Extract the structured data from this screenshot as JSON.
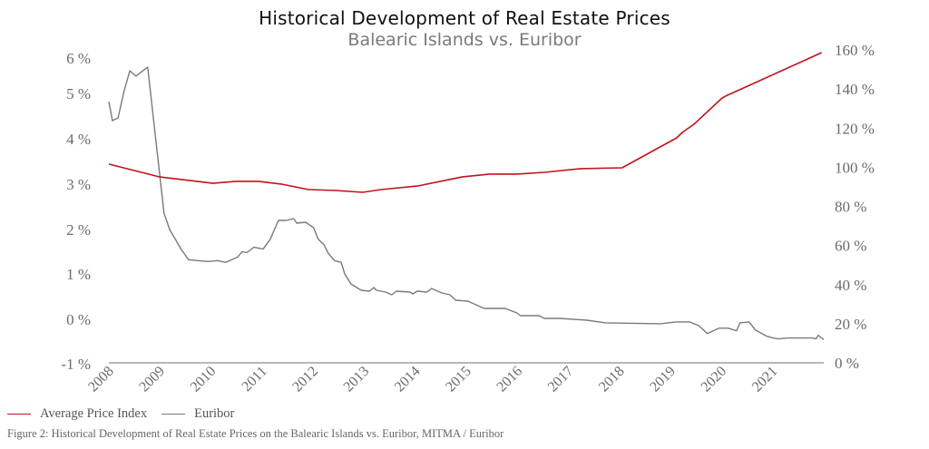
{
  "chart_data": {
    "type": "line",
    "title": "Historical Development of Real Estate Prices",
    "subtitle": "Balearic Islands vs. Euribor",
    "xlabel": "",
    "x_ticks": [
      "2008",
      "2009",
      "2010",
      "2011",
      "2012",
      "2013",
      "2014",
      "2015",
      "2016",
      "2017",
      "2018",
      "2019",
      "2020",
      "2021"
    ],
    "xlim": [
      2008,
      2022
    ],
    "y_left": {
      "label": "",
      "ticks": [
        -1,
        0,
        1,
        2,
        3,
        4,
        5,
        6
      ],
      "tick_labels": [
        "-1 %",
        "0 %",
        "1 %",
        "2 %",
        "3 %",
        "4 %",
        "5 %",
        "6 %"
      ],
      "ylim": [
        -1,
        6
      ]
    },
    "y_right": {
      "label": "",
      "ticks": [
        0,
        20,
        40,
        60,
        80,
        100,
        120,
        140,
        160
      ],
      "tick_labels": [
        "0 %",
        "20 %",
        "40 %",
        "60 %",
        "80 %",
        "100 %",
        "120 %",
        "140 %",
        "160 %"
      ],
      "ylim": [
        0,
        160
      ]
    },
    "grid": false,
    "legend_position": "bottom-left",
    "series": [
      {
        "name": "Average Price Index",
        "axis": "right",
        "color": "#c0141c",
        "x": [
          2008.0,
          2008.98,
          2010.04,
          2010.49,
          2010.93,
          2011.37,
          2011.91,
          2012.44,
          2012.97,
          2013.33,
          2014.04,
          2014.93,
          2015.46,
          2015.99,
          2016.53,
          2017.24,
          2018.05,
          2019.12,
          2019.23,
          2019.46,
          2020.01,
          2020.08,
          2021.96
        ],
        "values": [
          101.6,
          95.1,
          91.8,
          92.8,
          92.8,
          91.4,
          88.6,
          88.1,
          87.2,
          88.6,
          90.4,
          95.1,
          96.5,
          96.5,
          97.4,
          99.3,
          99.7,
          115.0,
          117.8,
          122.0,
          135.4,
          136.4,
          158.6
        ]
      },
      {
        "name": "Euribor",
        "axis": "left",
        "color": "#7a7a7a",
        "x": [
          2008.0,
          2008.07,
          2008.18,
          2008.3,
          2008.41,
          2008.53,
          2008.76,
          2009.08,
          2009.19,
          2009.42,
          2009.56,
          2009.74,
          2009.95,
          2010.13,
          2010.29,
          2010.52,
          2010.61,
          2010.7,
          2010.84,
          2011.02,
          2011.16,
          2011.32,
          2011.48,
          2011.62,
          2011.68,
          2011.85,
          2012.01,
          2012.1,
          2012.21,
          2012.3,
          2012.42,
          2012.55,
          2012.62,
          2012.74,
          2012.94,
          2013.1,
          2013.19,
          2013.24,
          2013.42,
          2013.54,
          2013.63,
          2013.9,
          2013.95,
          2014.04,
          2014.23,
          2014.32,
          2014.52,
          2014.68,
          2014.79,
          2015.03,
          2015.35,
          2015.76,
          2015.99,
          2016.06,
          2016.42,
          2016.53,
          2016.83,
          2017.36,
          2017.73,
          2018.8,
          2019.1,
          2019.37,
          2019.55,
          2019.72,
          2019.95,
          2020.13,
          2020.29,
          2020.36,
          2020.54,
          2020.66,
          2020.88,
          2021.0,
          2021.11,
          2021.32,
          2021.77,
          2021.85,
          2021.89,
          2022.0
        ],
        "values": [
          4.82,
          4.4,
          4.46,
          5.08,
          5.64,
          5.49,
          5.74,
          2.36,
          2.0,
          1.55,
          1.32,
          1.3,
          1.28,
          1.3,
          1.26,
          1.38,
          1.5,
          1.48,
          1.6,
          1.56,
          1.78,
          2.2,
          2.2,
          2.24,
          2.14,
          2.16,
          2.04,
          1.78,
          1.66,
          1.46,
          1.3,
          1.26,
          1.0,
          0.78,
          0.64,
          0.62,
          0.7,
          0.64,
          0.6,
          0.54,
          0.62,
          0.6,
          0.56,
          0.62,
          0.6,
          0.68,
          0.58,
          0.54,
          0.42,
          0.4,
          0.24,
          0.24,
          0.14,
          0.08,
          0.08,
          0.02,
          0.02,
          -0.02,
          -0.08,
          -0.1,
          -0.06,
          -0.06,
          -0.14,
          -0.32,
          -0.2,
          -0.2,
          -0.26,
          -0.08,
          -0.06,
          -0.24,
          -0.38,
          -0.42,
          -0.44,
          -0.42,
          -0.42,
          -0.44,
          -0.36,
          -0.46
        ]
      }
    ]
  },
  "legend": {
    "items": [
      {
        "label": "Average Price Index",
        "color": "#c0141c"
      },
      {
        "label": "Euribor",
        "color": "#7a7a7a"
      }
    ]
  },
  "caption": "Figure 2: Historical Development of Real Estate Prices on the Balearic Islands vs. Euribor, MITMA / Euribor"
}
